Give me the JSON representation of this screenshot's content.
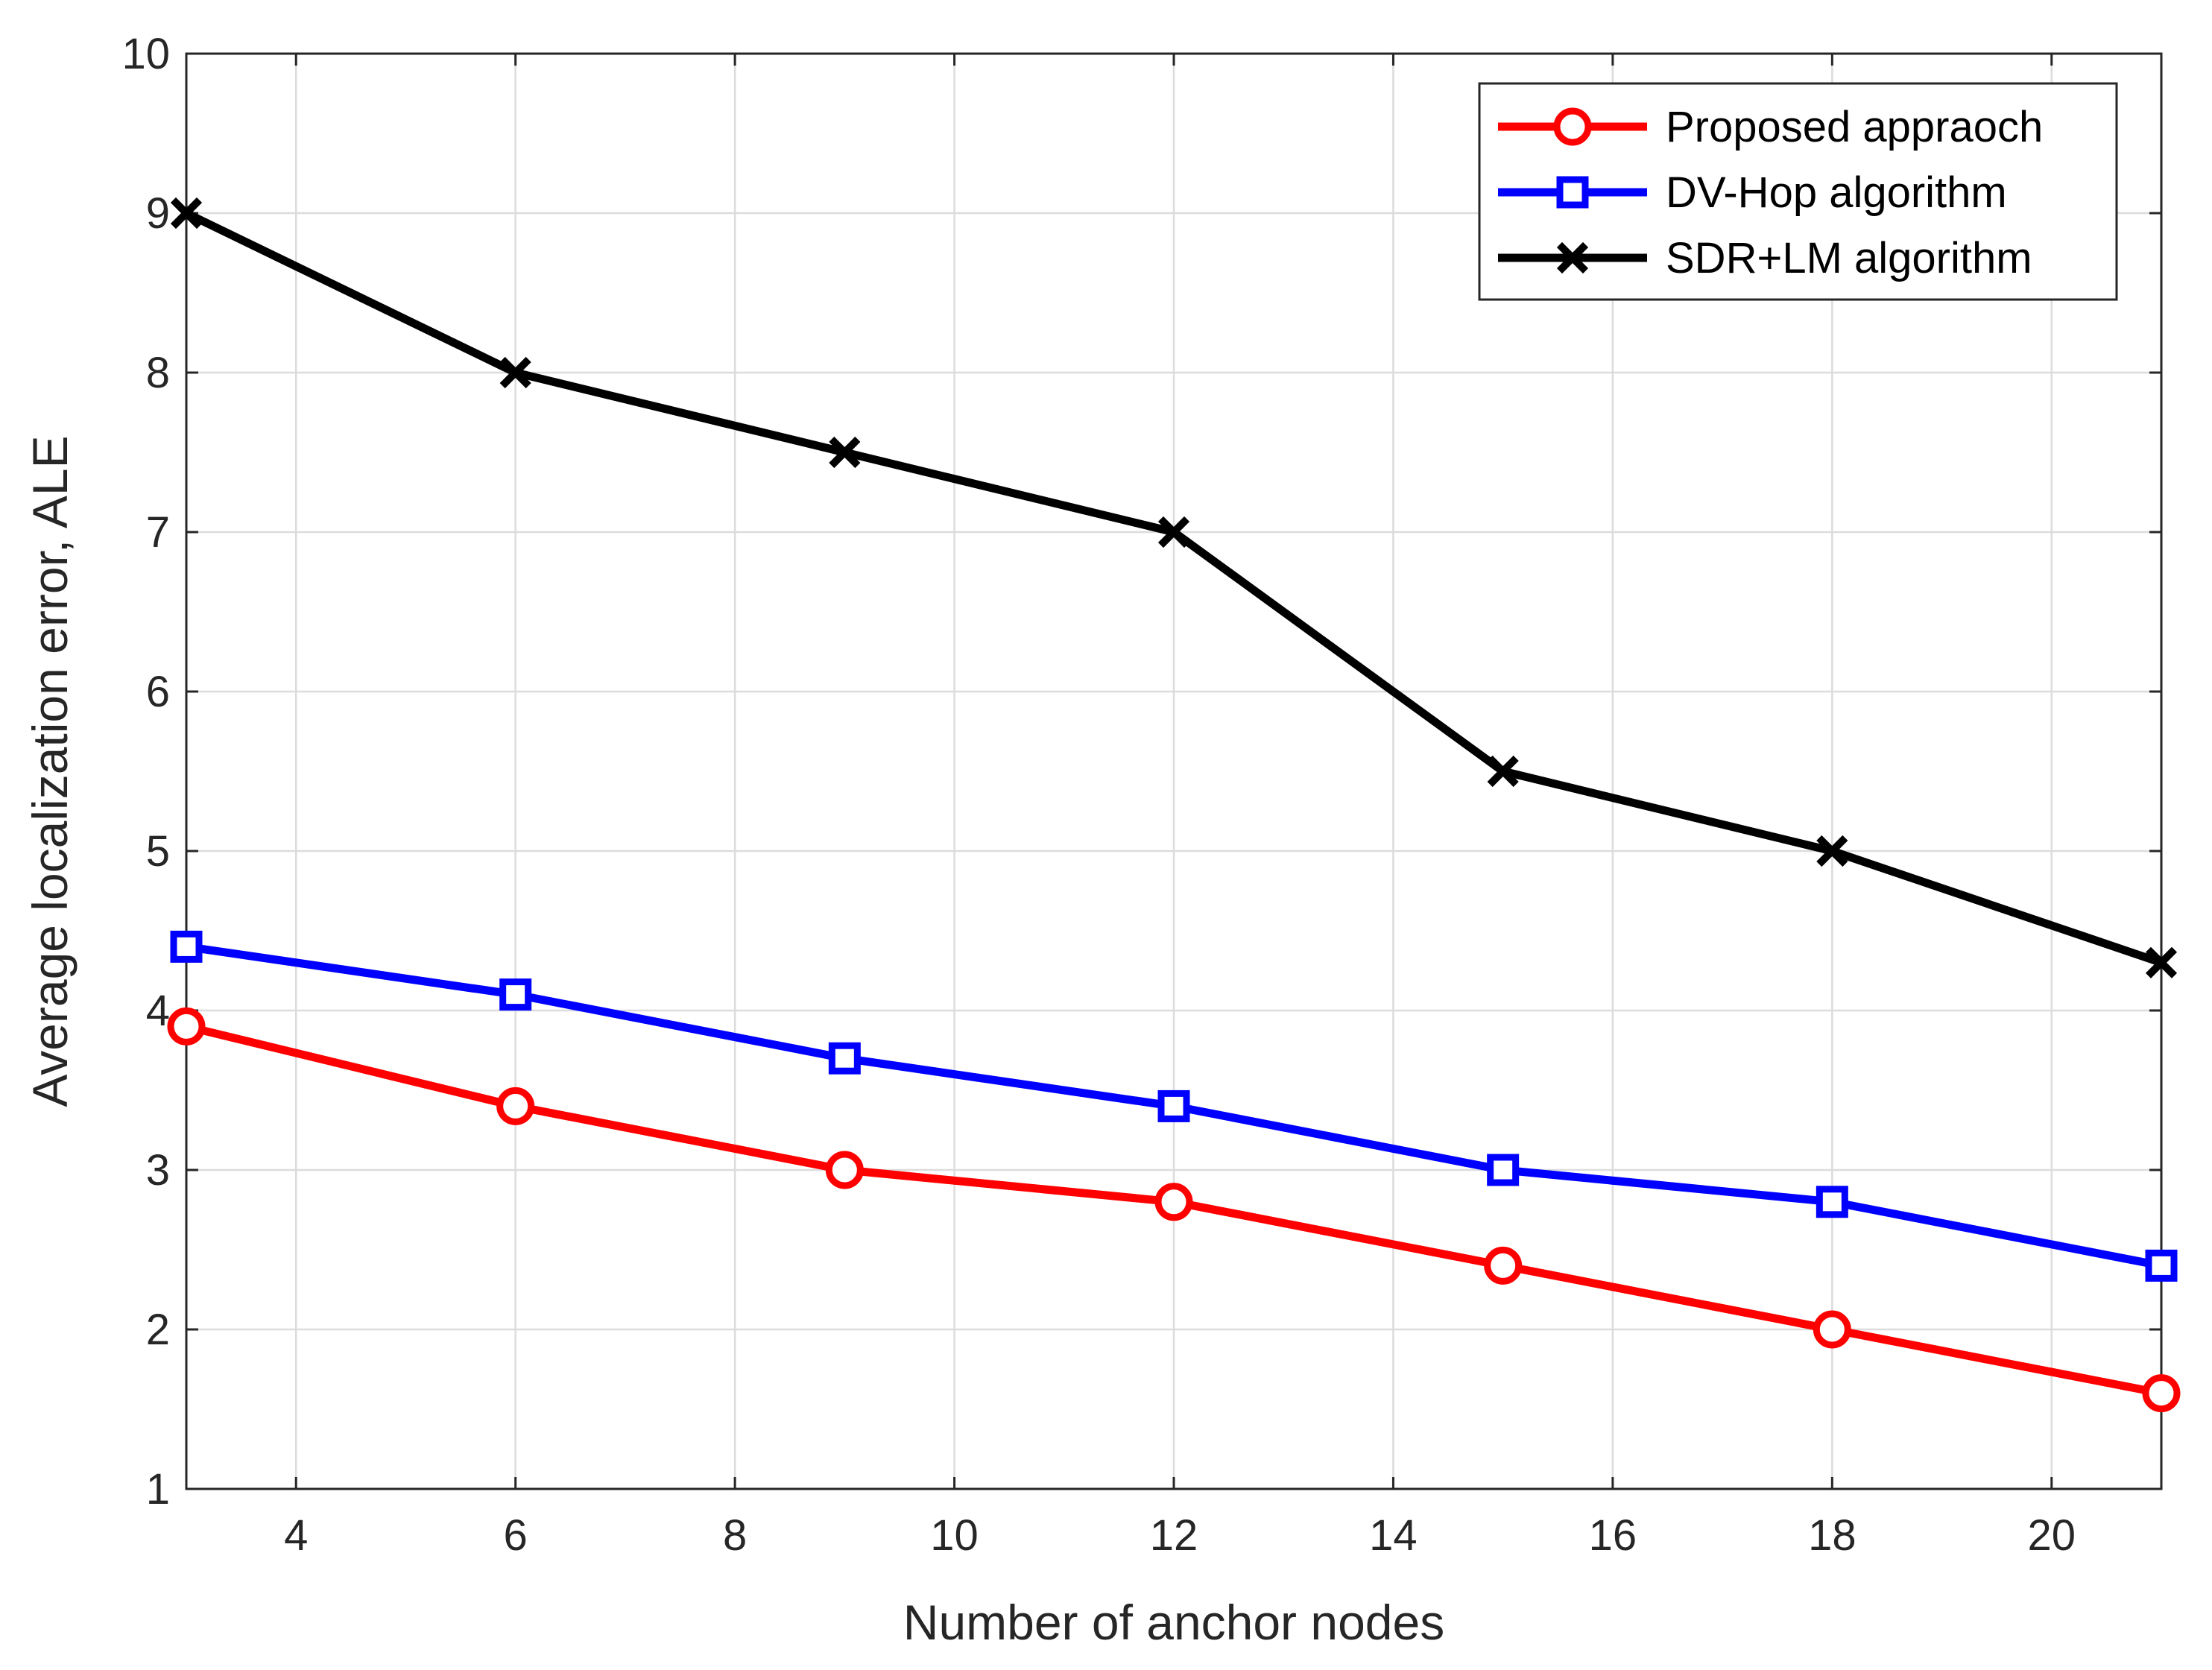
{
  "chart_data": {
    "type": "line",
    "title": "",
    "xlabel": "Number of anchor nodes",
    "ylabel": "Average localization error, ALE",
    "xlim": [
      3,
      21
    ],
    "ylim": [
      1,
      10
    ],
    "xticks": [
      4,
      6,
      8,
      10,
      12,
      14,
      16,
      18,
      20
    ],
    "yticks": [
      1,
      2,
      3,
      4,
      5,
      6,
      7,
      8,
      9,
      10
    ],
    "grid": true,
    "legend_position": "top-right",
    "x": [
      3,
      6,
      9,
      12,
      15,
      18,
      21
    ],
    "series": [
      {
        "name": "Proposed appraoch",
        "color": "#ff0000",
        "marker": "circle",
        "values": [
          3.9,
          3.4,
          3.0,
          2.8,
          2.4,
          2.0,
          1.6
        ]
      },
      {
        "name": "DV-Hop algorithm",
        "color": "#0000ff",
        "marker": "square",
        "values": [
          4.4,
          4.1,
          3.7,
          3.4,
          3.0,
          2.8,
          2.4
        ]
      },
      {
        "name": "SDR+LM algorithm",
        "color": "#000000",
        "marker": "x",
        "values": [
          9.0,
          8.0,
          7.5,
          7.0,
          5.5,
          5.0,
          4.3
        ]
      }
    ]
  }
}
